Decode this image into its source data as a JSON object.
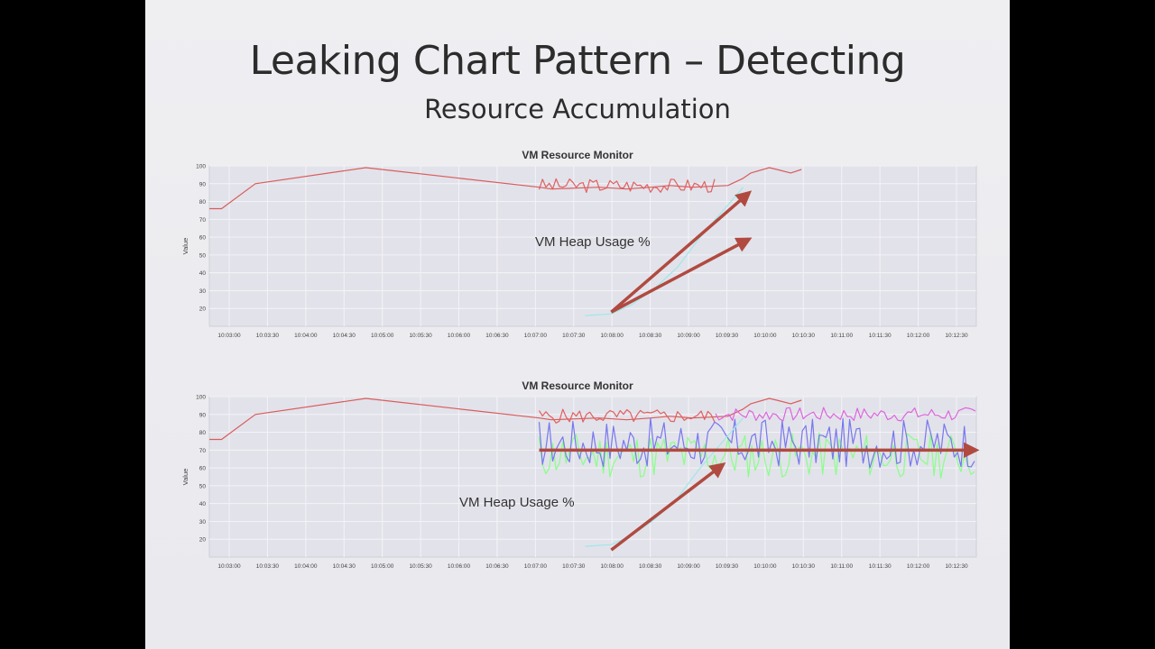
{
  "slide": {
    "title": "Leaking Chart Pattern – Detecting",
    "subtitle": "Resource Accumulation"
  },
  "colors": {
    "background": "#000000",
    "slide": "#ececf0",
    "plot_bg": "#e2e2ea",
    "grid": "#f3f3f7",
    "arrow": "#b04a40"
  },
  "charts": [
    {
      "title": "VM Resource Monitor",
      "ylabel": "Value",
      "annotation": "VM Heap Usage %"
    },
    {
      "title": "VM Resource Monitor",
      "ylabel": "Value",
      "annotation": "VM Heap Usage %"
    }
  ],
  "chart_data": [
    {
      "type": "line",
      "title": "VM Resource Monitor",
      "xlabel": "",
      "ylabel": "Value",
      "x_ticks": [
        "10:03:00",
        "10:03:30",
        "10:04:00",
        "10:04:30",
        "10:05:00",
        "10:05:30",
        "10:06:00",
        "10:06:30",
        "10:07:00",
        "10:07:30",
        "10:08:00",
        "10:08:30",
        "10:09:00",
        "10:09:30",
        "10:10:00",
        "10:10:30",
        "10:11:00",
        "10:11:30",
        "10:12:00",
        "10:12:30"
      ],
      "y_ticks": [
        20,
        30,
        40,
        50,
        60,
        70,
        80,
        90,
        100
      ],
      "ylim": [
        10,
        100
      ],
      "grid": true,
      "series": [
        {
          "color": "#d95c5c",
          "x": [
            0,
            8,
            30,
            102,
            215,
            223,
            254,
            272,
            288,
            300,
            315,
            338,
            348,
            353,
            365,
            370,
            379,
            386
          ],
          "y": [
            76,
            76,
            90,
            99,
            88,
            87,
            88,
            87,
            88,
            89,
            88,
            89,
            93,
            96,
            99,
            98,
            96,
            98
          ]
        },
        {
          "color": "#e06060",
          "noise_range": [
            215,
            330
          ],
          "noise_y": [
            85,
            93
          ],
          "seed": 3
        },
        {
          "color": "#9fe8e8",
          "x": [
            245,
            262,
            275,
            290,
            305,
            320,
            335,
            348
          ],
          "y": [
            16,
            17,
            22,
            31,
            43,
            60,
            75,
            88
          ]
        }
      ],
      "arrows": [
        {
          "from": [
            262,
            18
          ],
          "to": [
            352,
            85
          ],
          "color": "#b04a40"
        },
        {
          "from": [
            262,
            18
          ],
          "to": [
            352,
            59
          ],
          "color": "#b04a40"
        }
      ]
    },
    {
      "type": "line",
      "title": "VM Resource Monitor",
      "xlabel": "",
      "ylabel": "Value",
      "x_ticks": [
        "10:03:00",
        "10:03:30",
        "10:04:00",
        "10:04:30",
        "10:05:00",
        "10:05:30",
        "10:06:00",
        "10:06:30",
        "10:07:00",
        "10:07:30",
        "10:08:00",
        "10:08:30",
        "10:09:00",
        "10:09:30",
        "10:10:00",
        "10:10:30",
        "10:11:00",
        "10:11:30",
        "10:12:00",
        "10:12:30"
      ],
      "y_ticks": [
        20,
        30,
        40,
        50,
        60,
        70,
        80,
        90,
        100
      ],
      "ylim": [
        10,
        100
      ],
      "grid": true,
      "series": [
        {
          "color": "#d95c5c",
          "x": [
            0,
            8,
            30,
            102,
            215,
            223,
            254,
            272,
            288,
            300,
            315,
            338,
            348,
            353,
            365,
            370,
            379,
            386
          ],
          "y": [
            76,
            76,
            90,
            99,
            88,
            87,
            88,
            87,
            88,
            89,
            88,
            89,
            93,
            96,
            99,
            98,
            96,
            98
          ]
        },
        {
          "color": "#dd66dd",
          "noise_range": [
            330,
            500
          ],
          "noise_y": [
            86,
            94
          ],
          "seed": 7
        },
        {
          "color": "#e06060",
          "noise_range": [
            215,
            330
          ],
          "noise_y": [
            85,
            93
          ],
          "seed": 5
        },
        {
          "color": "#88ff88",
          "noise_range": [
            215,
            500
          ],
          "noise_y": [
            54,
            80
          ],
          "seed": 11
        },
        {
          "color": "#7777ee",
          "noise_range": [
            215,
            500
          ],
          "noise_y": [
            60,
            88
          ],
          "seed": 17
        },
        {
          "color": "#9fe8e8",
          "x": [
            245,
            262,
            275,
            290,
            305,
            320,
            335,
            348
          ],
          "y": [
            16,
            17,
            22,
            31,
            43,
            60,
            75,
            88
          ]
        }
      ],
      "arrows": [
        {
          "from": [
            262,
            14
          ],
          "to": [
            335,
            62
          ],
          "color": "#b04a40"
        },
        {
          "from": [
            215,
            70
          ],
          "to": [
            500,
            70
          ],
          "color": "#b04a40"
        }
      ]
    }
  ]
}
